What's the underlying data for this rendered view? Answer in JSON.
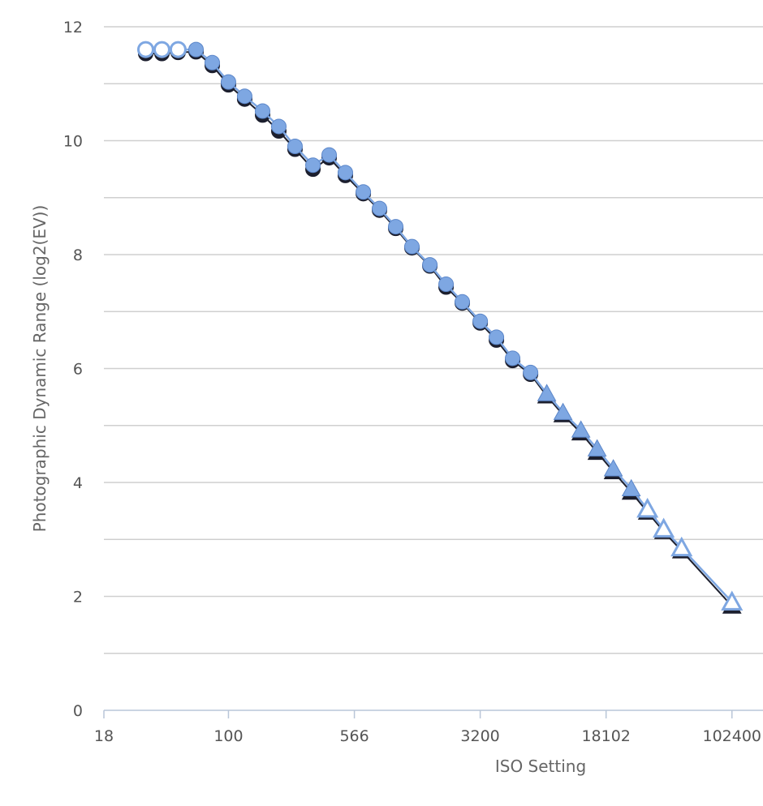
{
  "chart_data": {
    "type": "line",
    "xlabel": "ISO Setting",
    "ylabel": "Photographic Dynamic Range (log2(EV))",
    "x_scale": "log2",
    "xlim": [
      18,
      157000
    ],
    "ylim": [
      0,
      12
    ],
    "x_ticks": [
      18,
      100,
      566,
      3200,
      18102,
      102400
    ],
    "y_ticks": [
      0,
      2,
      4,
      6,
      8,
      10,
      12
    ],
    "grid": true,
    "legend": "none",
    "colors": {
      "series_main": "#7ea7e2",
      "series_shadow": "#1c1f2e",
      "marker_edge": "#5b86c9"
    },
    "series": [
      {
        "x": [
          32,
          40,
          50,
          64,
          80,
          100,
          125,
          160,
          200,
          250,
          320,
          400,
          500,
          640,
          800,
          1000,
          1250,
          1600,
          2000,
          2500,
          3200,
          4000,
          5000,
          6400,
          8000,
          10000,
          12800,
          16000,
          20000,
          25600,
          32000,
          40000,
          51200,
          102400
        ],
        "y": [
          11.6,
          11.6,
          11.6,
          11.6,
          11.37,
          11.03,
          10.78,
          10.52,
          10.25,
          9.9,
          9.57,
          9.75,
          9.44,
          9.1,
          8.81,
          8.49,
          8.14,
          7.82,
          7.48,
          7.17,
          6.83,
          6.55,
          6.18,
          5.93,
          5.56,
          5.23,
          4.92,
          4.59,
          4.24,
          3.89,
          3.53,
          3.18,
          2.85,
          1.9
        ],
        "markers": [
          "circle-open",
          "circle-open",
          "circle-open",
          "circle",
          "circle",
          "circle",
          "circle",
          "circle",
          "circle",
          "circle",
          "circle",
          "circle",
          "circle",
          "circle",
          "circle",
          "circle",
          "circle",
          "circle",
          "circle",
          "circle",
          "circle",
          "circle",
          "circle",
          "circle",
          "triangle",
          "triangle",
          "triangle",
          "triangle",
          "triangle",
          "triangle",
          "triangle-open",
          "triangle-open",
          "triangle-open",
          "triangle-open"
        ]
      },
      {
        "x": [
          32,
          40,
          50,
          64,
          80,
          100,
          125,
          160,
          200,
          250,
          320,
          400,
          500,
          640,
          800,
          1000,
          1250,
          1600,
          2000,
          2500,
          3200,
          4000,
          5000,
          6400,
          8000,
          10000,
          12800,
          16000,
          20000,
          25600,
          32000,
          40000,
          51200,
          102400
        ],
        "y": [
          11.53,
          11.53,
          11.55,
          11.56,
          11.32,
          10.98,
          10.73,
          10.45,
          10.17,
          9.85,
          9.5,
          9.7,
          9.39,
          9.07,
          8.78,
          8.46,
          8.12,
          7.8,
          7.43,
          7.15,
          6.8,
          6.5,
          6.14,
          5.9,
          5.52,
          5.19,
          4.87,
          4.53,
          4.19,
          3.83,
          3.48,
          3.14,
          2.8,
          1.83
        ]
      }
    ]
  }
}
